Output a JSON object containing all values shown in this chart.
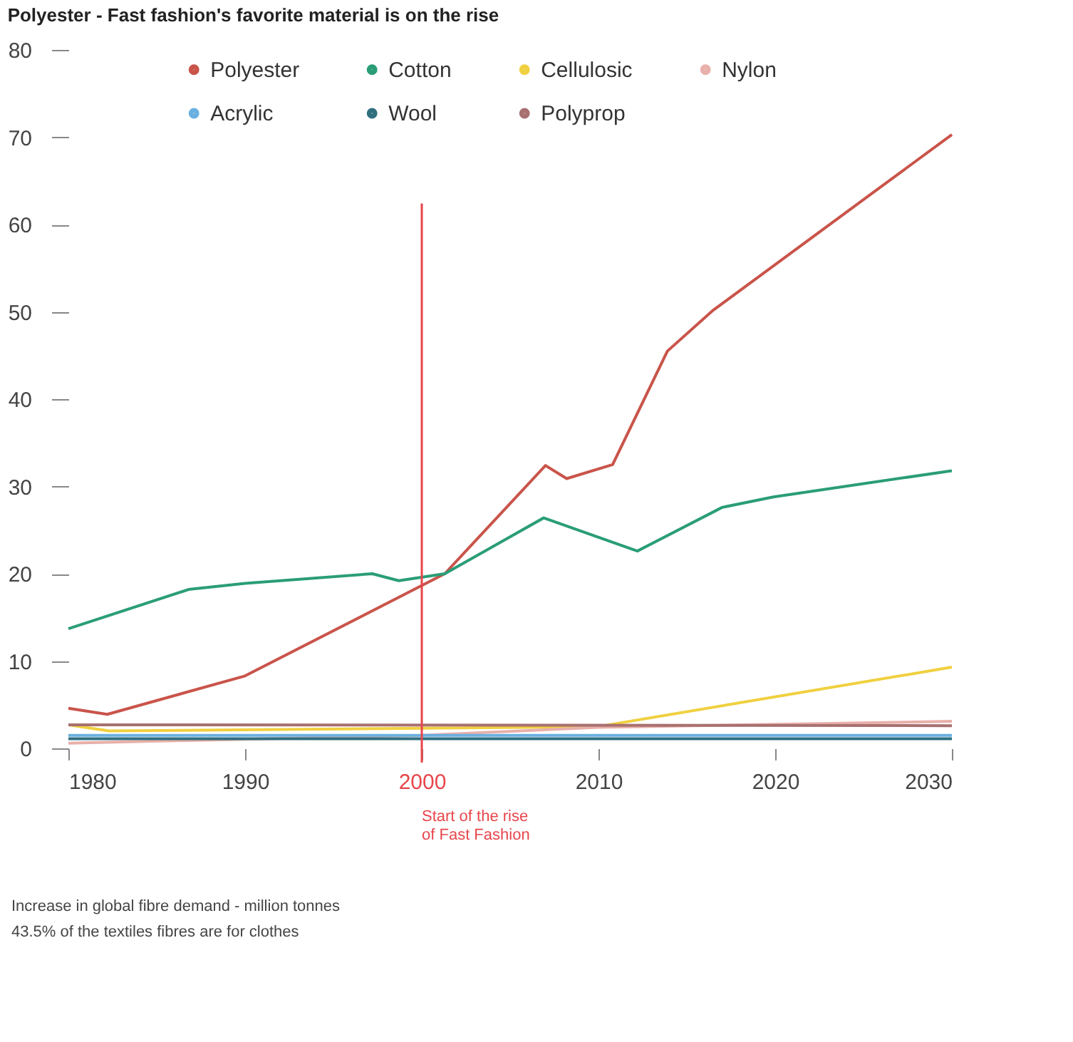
{
  "chart_data": {
    "type": "line",
    "title": "Polyester - Fast fashion's favorite material is on the rise",
    "xlim": [
      1980,
      2030
    ],
    "xticks": [
      1980,
      1990,
      2000,
      2010,
      2020,
      2030
    ],
    "ylim": [
      0,
      80
    ],
    "yticks": [
      0,
      10,
      20,
      30,
      40,
      50,
      60,
      70,
      80
    ],
    "grid": false,
    "legend": "top",
    "line_style": "solid",
    "marker": "none",
    "series": [
      {
        "name": "Polyester",
        "color": "#c9544a",
        "x": [
          1980,
          1982.2,
          1990,
          2001.3,
          2007,
          2008.2,
          2010.8,
          2013.9,
          2016.5,
          2030
        ],
        "values": [
          4.6,
          3.9,
          8.3,
          20,
          32.4,
          30.9,
          32.5,
          45.5,
          50.2,
          70.3
        ]
      },
      {
        "name": "Cotton",
        "color": "#2a9d77",
        "x": [
          1980,
          1986.8,
          1990,
          1997.2,
          1998.7,
          2001.3,
          2006.9,
          2012.2,
          2017,
          2019.9,
          2030
        ],
        "values": [
          13.7,
          18.2,
          18.9,
          20,
          19.2,
          20,
          26.4,
          22.6,
          27.6,
          28.8,
          31.8
        ]
      },
      {
        "name": "Cellulosic",
        "color": "#f0d040",
        "x": [
          1980,
          1982.3,
          2000,
          2010,
          2030
        ],
        "values": [
          2.7,
          2.0,
          2.3,
          2.5,
          9.3
        ]
      },
      {
        "name": "Nylon",
        "color": "#e8b0aa",
        "x": [
          1980,
          2000,
          2010,
          2030
        ],
        "values": [
          0.6,
          1.5,
          2.4,
          3.1
        ]
      },
      {
        "name": "Acrylic",
        "color": "#6ab0e0",
        "x": [
          1980,
          2030
        ],
        "values": [
          1.5,
          1.5
        ]
      },
      {
        "name": "Wool",
        "color": "#2f6f80",
        "x": [
          1980,
          2030
        ],
        "values": [
          1.1,
          1.1
        ]
      },
      {
        "name": "Polyprop",
        "color": "#a87070",
        "x": [
          1980,
          2030
        ],
        "values": [
          2.7,
          2.6
        ]
      }
    ],
    "ref_lines": [
      {
        "axis": "x",
        "value": 2000,
        "label": "Start of the rise\nof Fast Fashion",
        "color": "#e8454a"
      }
    ],
    "annotations": [
      "Increase in global fibre demand - million tonnes",
      "43.5% of the textiles fibres are for clothes"
    ]
  }
}
